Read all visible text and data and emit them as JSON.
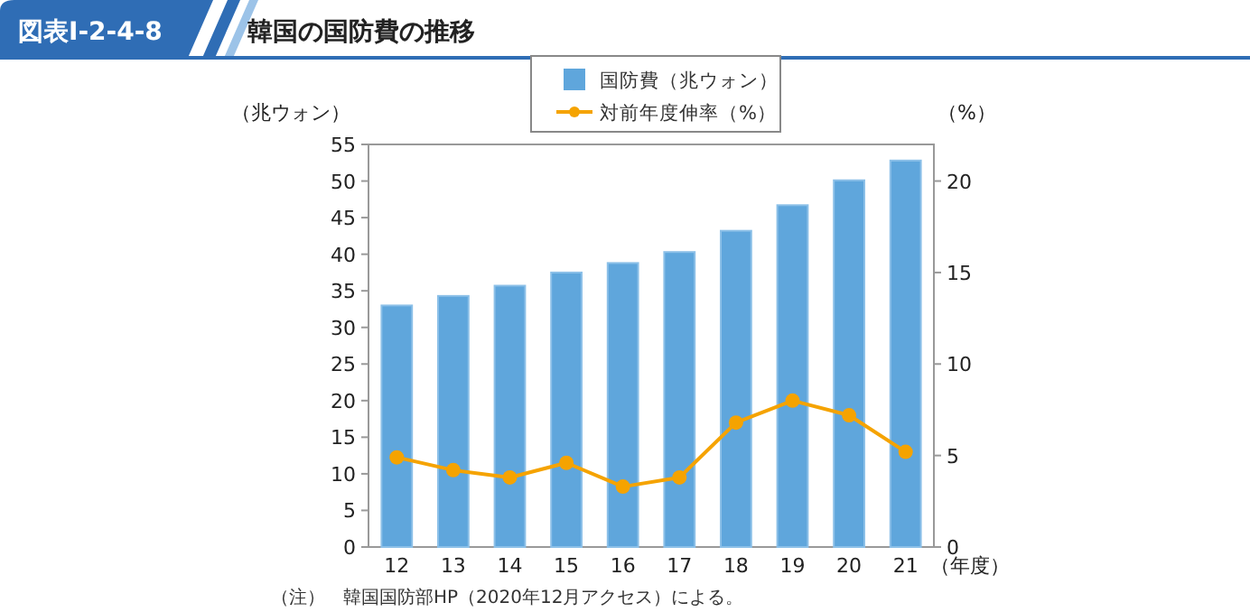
{
  "chart_data": {
    "type": "bar",
    "title": "韓国の国防費の推移",
    "subtitle": "図表Ⅰ-2-4-8",
    "ylabel": "（兆ウォン）",
    "y2label": "（%）",
    "xlabel": "（年度）",
    "categories": [
      "12",
      "13",
      "14",
      "15",
      "16",
      "17",
      "18",
      "19",
      "20",
      "21"
    ],
    "series": [
      {
        "name": "国防費（兆ウォン）",
        "color": "#5fa6dc",
        "values": [
          33.0,
          34.3,
          35.7,
          37.5,
          38.8,
          40.3,
          43.2,
          46.7,
          50.1,
          52.8
        ]
      },
      {
        "name": "対前年度伸率（%）",
        "type": "line",
        "axis": "y2",
        "color": "#f5a300",
        "marker": "circle",
        "values": [
          4.9,
          4.2,
          3.8,
          4.6,
          3.3,
          3.8,
          6.8,
          8.0,
          7.2,
          5.2
        ]
      }
    ],
    "ylim": [
      0,
      55
    ],
    "yticks": [
      0,
      5,
      10,
      15,
      20,
      25,
      30,
      35,
      40,
      45,
      50,
      55
    ],
    "y2lim": [
      0,
      22
    ],
    "y2ticks": [
      0,
      5,
      10,
      15,
      20
    ],
    "grid": false,
    "legend": "top",
    "annotations": [
      "（注）　韓国国防部HP（2020年12月アクセス）による。"
    ]
  }
}
